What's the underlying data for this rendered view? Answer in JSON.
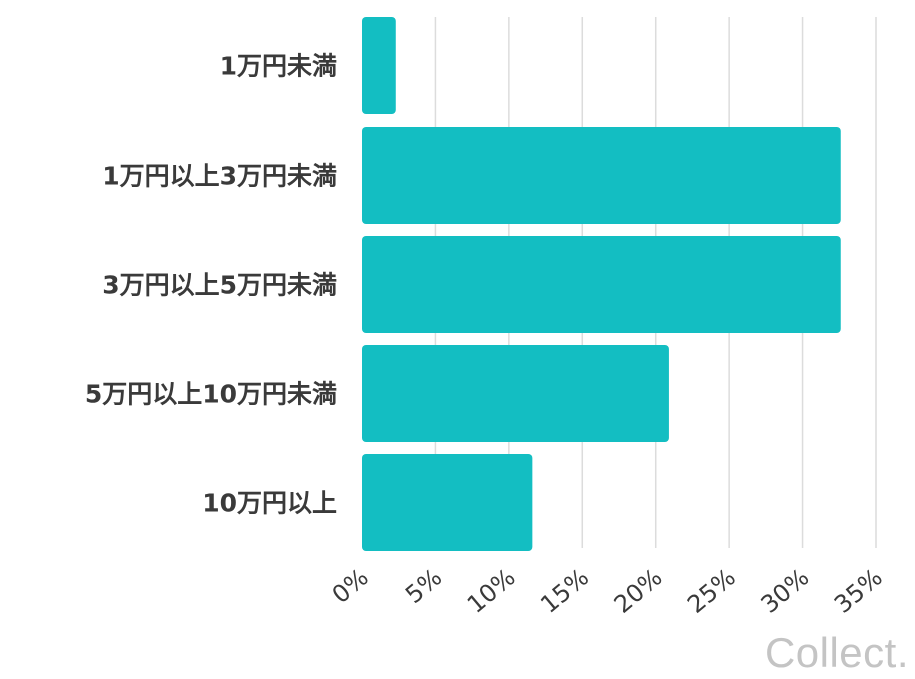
{
  "chart_data": {
    "type": "bar",
    "orientation": "horizontal",
    "categories": [
      "1万円未満",
      "1万円以上3万円未満",
      "3万円以上5万円未満",
      "5万円以上10万円未満",
      "10万円以上"
    ],
    "values": [
      2.3,
      32.6,
      32.6,
      20.9,
      11.6
    ],
    "unit": "%",
    "xlim": [
      0,
      35
    ],
    "x_ticks": [
      "0%",
      "5%",
      "10%",
      "15%",
      "20%",
      "25%",
      "30%",
      "35%"
    ],
    "grid": "vertical",
    "bar_color": "#13bec2",
    "legend": "none"
  },
  "watermark": "Collect."
}
